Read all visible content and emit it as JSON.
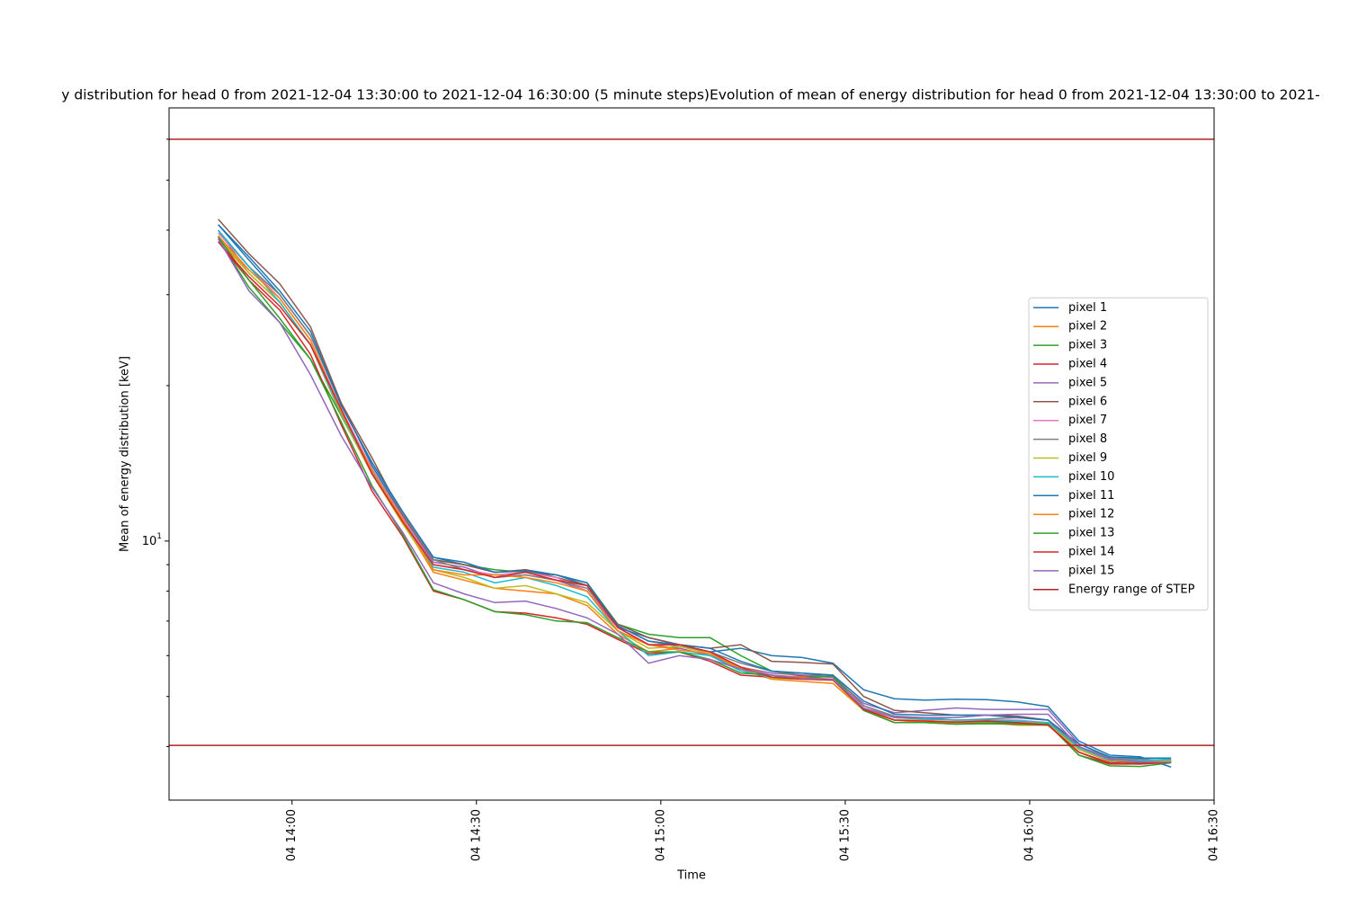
{
  "chart_data": {
    "type": "line",
    "title": "y distribution for head 0 from 2021-12-04 13:30:00 to 2021-12-04 16:30:00 (5 minute steps)Evolution of mean of energy distribution for head 0 from 2021-12-04 13:30:00 to 2021-",
    "xlabel": "Time",
    "ylabel": "Mean of energy distribution [keV]",
    "x": [
      "04 13:48",
      "04 13:53",
      "04 13:58",
      "04 14:03",
      "04 14:08",
      "04 14:13",
      "04 14:18",
      "04 14:23",
      "04 14:28",
      "04 14:33",
      "04 14:38",
      "04 14:43",
      "04 14:48",
      "04 14:53",
      "04 14:58",
      "04 15:03",
      "04 15:08",
      "04 15:13",
      "04 15:18",
      "04 15:23",
      "04 15:28",
      "04 15:33",
      "04 15:38",
      "04 15:43",
      "04 15:48",
      "04 15:53",
      "04 15:58",
      "04 16:03",
      "04 16:08",
      "04 16:13",
      "04 16:18",
      "04 16:23"
    ],
    "xlim": [
      "04 13:40",
      "04 16:30"
    ],
    "xticks": [
      "04 14:00",
      "04 14:30",
      "04 15:00",
      "04 15:30",
      "04 16:00",
      "04 16:30"
    ],
    "ylog": true,
    "ylim": [
      3.15,
      69
    ],
    "yticks": [
      {
        "value": 10,
        "label": "10^1"
      }
    ],
    "legend": "center right",
    "series": [
      {
        "name": "pixel 1",
        "color": "#1f77b4",
        "values": [
          41,
          35,
          30,
          25,
          18.5,
          14,
          11.2,
          9.3,
          9.0,
          8.7,
          8.8,
          8.6,
          8.2,
          6.8,
          6.5,
          6.3,
          6.1,
          6.2,
          6.0,
          5.95,
          5.8,
          5.15,
          4.95,
          4.92,
          4.94,
          4.93,
          4.88,
          4.78,
          4.1,
          3.85,
          3.82,
          3.65
        ]
      },
      {
        "name": "pixel 2",
        "color": "#ff7f0e",
        "values": [
          38.5,
          33,
          29,
          24,
          17.5,
          13.5,
          10.9,
          8.7,
          8.4,
          8.1,
          8.0,
          7.9,
          7.5,
          6.6,
          6.1,
          6.2,
          6.0,
          5.65,
          5.4,
          5.35,
          5.3,
          4.7,
          4.5,
          4.5,
          4.45,
          4.45,
          4.4,
          4.4,
          3.95,
          3.75,
          3.72,
          3.74
        ]
      },
      {
        "name": "pixel 3",
        "color": "#2ca02c",
        "values": [
          38.5,
          31,
          26.5,
          22.5,
          17.5,
          13.6,
          11.0,
          9.2,
          9.0,
          8.8,
          8.7,
          8.6,
          8.3,
          6.9,
          6.6,
          6.5,
          6.5,
          6.0,
          5.6,
          5.5,
          5.5,
          4.7,
          4.45,
          4.45,
          4.42,
          4.43,
          4.42,
          4.4,
          3.9,
          3.7,
          3.72,
          3.78
        ]
      },
      {
        "name": "pixel 4",
        "color": "#d62728",
        "values": [
          38,
          32,
          28,
          23,
          16.8,
          12.5,
          10.2,
          8.0,
          7.7,
          7.3,
          7.25,
          7.1,
          6.9,
          6.45,
          6.05,
          6.1,
          5.85,
          5.5,
          5.45,
          5.48,
          5.45,
          4.7,
          4.45,
          4.45,
          4.46,
          4.45,
          4.45,
          4.42,
          3.85,
          3.7,
          3.7,
          3.73
        ]
      },
      {
        "name": "pixel 5",
        "color": "#9467bd",
        "values": [
          40,
          33,
          29,
          24,
          17.9,
          13.8,
          11.1,
          9.1,
          8.9,
          8.5,
          8.6,
          8.4,
          8.0,
          6.8,
          6.3,
          6.2,
          6.0,
          5.7,
          5.55,
          5.5,
          5.45,
          4.85,
          4.65,
          4.7,
          4.75,
          4.72,
          4.72,
          4.72,
          4.05,
          3.8,
          3.75,
          3.75
        ]
      },
      {
        "name": "pixel 6",
        "color": "#8c564b",
        "values": [
          42,
          36,
          31.5,
          26,
          18.5,
          14.5,
          11.2,
          9.2,
          9.0,
          8.7,
          8.8,
          8.5,
          8.2,
          6.9,
          6.5,
          6.3,
          6.2,
          6.3,
          5.85,
          5.82,
          5.78,
          5.0,
          4.7,
          4.65,
          4.6,
          4.6,
          4.58,
          4.5,
          3.95,
          3.75,
          3.72,
          3.75
        ]
      },
      {
        "name": "pixel 7",
        "color": "#e377c2",
        "values": [
          39.5,
          34,
          29.5,
          24.5,
          18,
          13.8,
          11.1,
          9.0,
          8.8,
          8.6,
          8.7,
          8.5,
          8.0,
          6.7,
          6.3,
          6.3,
          6.1,
          5.7,
          5.45,
          5.42,
          5.4,
          4.8,
          4.55,
          4.52,
          4.5,
          4.5,
          4.5,
          4.45,
          4.0,
          3.78,
          3.75,
          3.75
        ]
      },
      {
        "name": "pixel 8",
        "color": "#7f7f7f",
        "values": [
          40,
          34,
          30,
          25,
          18.3,
          14.2,
          11.3,
          9.2,
          8.8,
          8.5,
          8.6,
          8.4,
          8.1,
          6.85,
          6.4,
          6.25,
          6.1,
          5.8,
          5.6,
          5.55,
          5.5,
          4.8,
          4.58,
          4.55,
          4.5,
          4.52,
          4.55,
          4.5,
          4.0,
          3.8,
          3.78,
          3.76
        ]
      },
      {
        "name": "pixel 9",
        "color": "#bcbd22",
        "values": [
          39,
          33,
          29,
          24,
          17.6,
          13.5,
          10.8,
          8.8,
          8.5,
          8.1,
          8.2,
          7.9,
          7.6,
          6.7,
          6.2,
          6.25,
          6.05,
          5.68,
          5.42,
          5.4,
          5.38,
          4.7,
          4.5,
          4.48,
          4.47,
          4.47,
          4.45,
          4.45,
          3.95,
          3.76,
          3.74,
          3.75
        ]
      },
      {
        "name": "pixel 10",
        "color": "#17becf",
        "values": [
          40,
          34,
          29,
          24,
          17.7,
          13.6,
          11.0,
          8.9,
          8.7,
          8.3,
          8.5,
          8.2,
          7.8,
          6.7,
          6.0,
          6.1,
          6.0,
          5.6,
          5.45,
          5.42,
          5.4,
          4.75,
          4.55,
          4.52,
          4.5,
          4.5,
          4.48,
          4.45,
          3.98,
          3.77,
          3.76,
          3.78
        ]
      },
      {
        "name": "pixel 11",
        "color": "#1f77b4",
        "values": [
          41,
          35.5,
          30.5,
          25.5,
          18.3,
          14.2,
          11.4,
          9.3,
          9.1,
          8.7,
          8.75,
          8.6,
          8.3,
          6.85,
          6.4,
          6.3,
          6.2,
          5.85,
          5.6,
          5.55,
          5.5,
          4.9,
          4.62,
          4.6,
          4.6,
          4.6,
          4.55,
          4.5,
          4.05,
          3.82,
          3.8,
          3.8
        ]
      },
      {
        "name": "pixel 12",
        "color": "#ff7f0e",
        "values": [
          39,
          33.5,
          29.5,
          24.5,
          17.8,
          13.7,
          11.0,
          8.8,
          8.6,
          8.6,
          8.5,
          8.3,
          8.0,
          6.7,
          6.3,
          6.15,
          6.05,
          5.7,
          5.5,
          5.45,
          5.4,
          4.75,
          4.5,
          4.45,
          4.45,
          4.45,
          4.45,
          4.42,
          3.9,
          3.72,
          3.7,
          3.73
        ]
      },
      {
        "name": "pixel 13",
        "color": "#2ca02c",
        "values": [
          38.8,
          32,
          27,
          22.5,
          17,
          12.8,
          10.3,
          8.05,
          7.7,
          7.3,
          7.2,
          7.0,
          6.95,
          6.5,
          6.1,
          6.1,
          5.9,
          5.55,
          5.5,
          5.42,
          5.48,
          4.7,
          4.45,
          4.45,
          4.42,
          4.44,
          4.43,
          4.42,
          3.85,
          3.67,
          3.66,
          3.72
        ]
      },
      {
        "name": "pixel 14",
        "color": "#d62728",
        "values": [
          38,
          32.5,
          28.5,
          24,
          18,
          13.5,
          10.9,
          9.0,
          8.8,
          8.5,
          8.7,
          8.4,
          8.2,
          6.8,
          6.3,
          6.3,
          6.1,
          5.7,
          5.45,
          5.4,
          5.38,
          4.72,
          4.5,
          4.48,
          4.46,
          4.48,
          4.45,
          4.4,
          3.9,
          3.72,
          3.7,
          3.73
        ]
      },
      {
        "name": "pixel 15",
        "color": "#9467bd",
        "values": [
          38.5,
          30.5,
          26.5,
          21,
          16,
          12.7,
          10.4,
          8.3,
          7.9,
          7.6,
          7.65,
          7.4,
          7.1,
          6.6,
          5.8,
          6.0,
          5.9,
          5.65,
          5.5,
          5.42,
          5.4,
          4.75,
          4.55,
          4.55,
          4.55,
          4.6,
          4.62,
          4.62,
          4.0,
          3.78,
          3.74,
          3.73
        ]
      }
    ],
    "hlines": {
      "name": "Energy range of STEP",
      "color": "#b22222",
      "values": [
        60,
        4.02
      ]
    }
  }
}
